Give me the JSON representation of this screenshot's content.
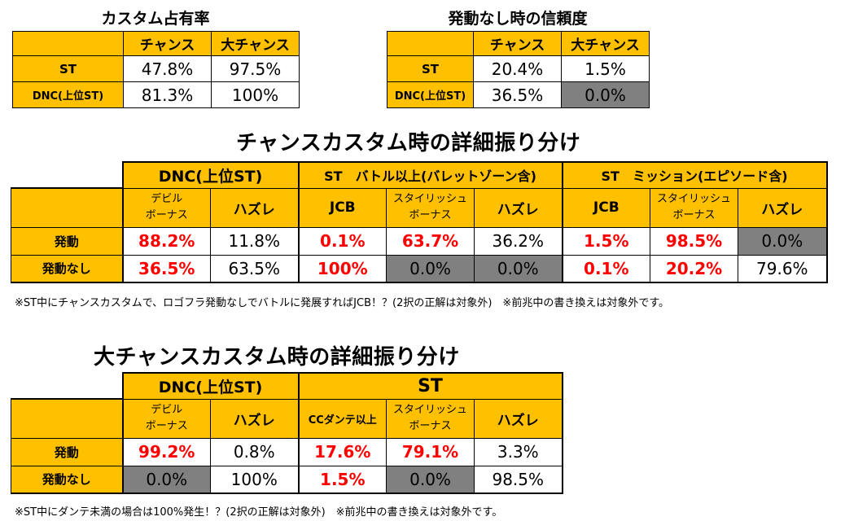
{
  "share": {
    "title": "カスタム占有率",
    "headers": [
      "チャンス",
      "大チャンス"
    ],
    "rows": [
      {
        "label": "ST",
        "values": [
          "47.8%",
          "97.5%"
        ]
      },
      {
        "label": "DNC(上位ST)",
        "values": [
          "81.3%",
          "100%"
        ]
      }
    ]
  },
  "reliability": {
    "title": "発動なし時の信頼度",
    "headers": [
      "チャンス",
      "大チャンス"
    ],
    "rows": [
      {
        "label": "ST",
        "values": [
          "20.4%",
          "1.5%"
        ]
      },
      {
        "label": "DNC(上位ST)",
        "values": [
          "36.5%",
          "0.0%"
        ]
      }
    ]
  },
  "chance": {
    "title": "チャンスカスタム時の詳細振り分け",
    "groups": [
      "DNC(上位ST)",
      "ST　バトル以上(バレットゾーン含)",
      "ST　ミッション(エピソード含)"
    ],
    "subs": [
      [
        "デビル",
        "ボーナス"
      ],
      [
        "ハズレ"
      ],
      [
        "JCB"
      ],
      [
        "スタイリッシュ",
        "ボーナス"
      ],
      [
        "ハズレ"
      ],
      [
        "JCB"
      ],
      [
        "スタイリッシュ",
        "ボーナス"
      ],
      [
        "ハズレ"
      ]
    ],
    "rows": [
      {
        "label": "発動",
        "values": [
          "88.2%",
          "11.8%",
          "0.1%",
          "63.7%",
          "36.2%",
          "1.5%",
          "98.5%",
          "0.0%"
        ]
      },
      {
        "label": "発動なし",
        "values": [
          "36.5%",
          "63.5%",
          "100%",
          "0.0%",
          "0.0%",
          "0.1%",
          "20.2%",
          "79.6%"
        ]
      }
    ],
    "note": "※ST中にチャンスカスタムで、ロゴフラ発動なしでバトルに発展すればJCB！？(2択の正解は対象外)　※前兆中の書き換えは対象外です。"
  },
  "bigchance": {
    "title": "大チャンスカスタム時の詳細振り分け",
    "groups": [
      "DNC(上位ST)",
      "ST"
    ],
    "subs": [
      [
        "デビル",
        "ボーナス"
      ],
      [
        "ハズレ"
      ],
      [
        "CCダンテ以上"
      ],
      [
        "スタイリッシュ",
        "ボーナス"
      ],
      [
        "ハズレ"
      ]
    ],
    "rows": [
      {
        "label": "発動",
        "values": [
          "99.2%",
          "0.8%",
          "17.6%",
          "79.1%",
          "3.3%"
        ]
      },
      {
        "label": "発動なし",
        "values": [
          "0.0%",
          "100%",
          "1.5%",
          "0.0%",
          "98.5%"
        ]
      }
    ],
    "note": "※ST中にダンテ未満の場合は100%発生！？(2択の正解は対象外)　※前兆中の書き換えは対象外です。"
  },
  "colors": {
    "header": "#ffc000",
    "gray": "#808080",
    "highlight": "#ff0000"
  }
}
